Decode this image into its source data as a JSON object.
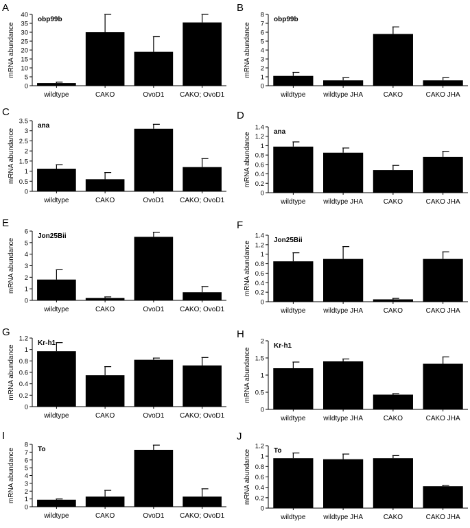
{
  "figure": {
    "ylabel": "mRNA abundance"
  },
  "chart_data": [
    {
      "panel": "A",
      "gene": "obp99b",
      "type": "bar",
      "categories": [
        "wildtype",
        "CAKO",
        "OvoD1",
        "CAKO; OvoD1"
      ],
      "values": [
        1.5,
        30,
        19,
        35.5
      ],
      "errors": [
        0.5,
        10,
        8.5,
        4.5
      ],
      "ylim": [
        0,
        40
      ],
      "yticks": [
        0,
        5,
        10,
        15,
        20,
        25,
        30,
        35,
        40
      ],
      "ytick_labels": [
        "0",
        "5",
        "10",
        "15",
        "20",
        "25",
        "30",
        "35",
        "40"
      ],
      "ylabel": "mRNA abundance",
      "color": "#000000"
    },
    {
      "panel": "B",
      "gene": "obp99b",
      "type": "bar",
      "categories": [
        "wildtype",
        "wildtype JHA",
        "CAKO",
        "CAKO JHA"
      ],
      "values": [
        1.1,
        0.6,
        5.8,
        0.6
      ],
      "errors": [
        0.4,
        0.3,
        0.8,
        0.3
      ],
      "ylim": [
        0,
        8
      ],
      "yticks": [
        0,
        1,
        2,
        3,
        4,
        5,
        6,
        7,
        8
      ],
      "ytick_labels": [
        "0",
        "1",
        "2",
        "3",
        "4",
        "5",
        "6",
        "7",
        "8"
      ],
      "ylabel": "mRNA abundance",
      "color": "#000000"
    },
    {
      "panel": "C",
      "gene": "ana",
      "type": "bar",
      "categories": [
        "wildtype",
        "CAKO",
        "OvoD1",
        "CAKO; OvoD1"
      ],
      "values": [
        1.12,
        0.6,
        3.1,
        1.2
      ],
      "errors": [
        0.2,
        0.33,
        0.22,
        0.42
      ],
      "ylim": [
        0,
        3.5
      ],
      "yticks": [
        0,
        0.5,
        1,
        1.5,
        2,
        2.5,
        3,
        3.5
      ],
      "ytick_labels": [
        "0",
        "0.5",
        "1",
        "1.5",
        "2",
        "2.5",
        "3",
        "3.5"
      ],
      "ylabel": "mRNA abundance",
      "color": "#000000"
    },
    {
      "panel": "D",
      "gene": "ana",
      "type": "bar",
      "categories": [
        "wildtype",
        "wildtype JHA",
        "CAKO",
        "CAKO JHA"
      ],
      "values": [
        0.98,
        0.85,
        0.48,
        0.76
      ],
      "errors": [
        0.1,
        0.1,
        0.1,
        0.12
      ],
      "ylim": [
        0,
        1.4
      ],
      "yticks": [
        0,
        0.2,
        0.4,
        0.6,
        0.8,
        1,
        1.2,
        1.4
      ],
      "ytick_labels": [
        "0",
        "0.2",
        "0.4",
        "0.6",
        "0.8",
        "1",
        "1.2",
        "1.4"
      ],
      "ylabel": "mRNA abundance",
      "color": "#000000"
    },
    {
      "panel": "E",
      "gene": "Jon25Bii",
      "type": "bar",
      "categories": [
        "wildtype",
        "CAKO",
        "OvoD1",
        "CAKO; OvoD1"
      ],
      "values": [
        1.8,
        0.2,
        5.5,
        0.7
      ],
      "errors": [
        0.85,
        0.1,
        0.4,
        0.5
      ],
      "ylim": [
        0,
        6
      ],
      "yticks": [
        0,
        1,
        2,
        3,
        4,
        5,
        6
      ],
      "ytick_labels": [
        "0",
        "1",
        "2",
        "3",
        "4",
        "5",
        "6"
      ],
      "ylabel": "mRNA abundance",
      "color": "#000000"
    },
    {
      "panel": "F",
      "gene": "Jon25Bii",
      "type": "bar",
      "categories": [
        "wildtype",
        "wildtype JHA",
        "CAKO",
        "CAKO JHA"
      ],
      "values": [
        0.85,
        0.9,
        0.05,
        0.9
      ],
      "errors": [
        0.18,
        0.26,
        0.02,
        0.15
      ],
      "ylim": [
        0,
        1.4
      ],
      "yticks": [
        0,
        0.2,
        0.4,
        0.6,
        0.8,
        1,
        1.2,
        1.4
      ],
      "ytick_labels": [
        "0",
        "0.2",
        "0.4",
        "0.6",
        "0.8",
        "1",
        "1.2",
        "1.4"
      ],
      "ylabel": "mRNA abundance",
      "color": "#000000"
    },
    {
      "panel": "G",
      "gene": "Kr-h1",
      "type": "bar",
      "categories": [
        "wildtype",
        "CAKO",
        "OvoD1",
        "CAKO; OvoD1"
      ],
      "values": [
        0.97,
        0.55,
        0.82,
        0.72
      ],
      "errors": [
        0.15,
        0.15,
        0.03,
        0.14
      ],
      "ylim": [
        0,
        1.2
      ],
      "yticks": [
        0,
        0.2,
        0.4,
        0.6,
        0.8,
        1,
        1.2
      ],
      "ytick_labels": [
        "0",
        "0.2",
        "0.4",
        "0.6",
        "0.8",
        "1",
        "1.2"
      ],
      "ylabel": "mRNA abundance",
      "color": "#000000"
    },
    {
      "panel": "H",
      "gene": "Kr-h1",
      "type": "bar",
      "categories": [
        "wildtype",
        "wildtype JHA",
        "CAKO",
        "CAKO JHA"
      ],
      "values": [
        1.2,
        1.4,
        0.43,
        1.33
      ],
      "errors": [
        0.18,
        0.07,
        0.03,
        0.2
      ],
      "ylim": [
        0,
        2
      ],
      "yticks": [
        0,
        0.5,
        1,
        1.5,
        2
      ],
      "ytick_labels": [
        "0",
        "0.5",
        "1",
        "1.5",
        "2"
      ],
      "ylabel": "mRNA abundance",
      "color": "#000000"
    },
    {
      "panel": "I",
      "gene": "To",
      "type": "bar",
      "categories": [
        "wildtype",
        "CAKO",
        "OvoD1",
        "CAKO; OvoD1"
      ],
      "values": [
        0.9,
        1.3,
        7.3,
        1.3
      ],
      "errors": [
        0.1,
        0.8,
        0.6,
        1.0
      ],
      "ylim": [
        0,
        8
      ],
      "yticks": [
        0,
        1,
        2,
        3,
        4,
        5,
        6,
        7,
        8
      ],
      "ytick_labels": [
        "0",
        "1",
        "2",
        "3",
        "4",
        "5",
        "6",
        "7",
        "8"
      ],
      "ylabel": "mRNA abundance",
      "color": "#000000"
    },
    {
      "panel": "J",
      "gene": "To",
      "type": "bar",
      "categories": [
        "wildtype",
        "wildtype JHA",
        "CAKO",
        "CAKO JHA"
      ],
      "values": [
        0.96,
        0.94,
        0.96,
        0.42
      ],
      "errors": [
        0.1,
        0.1,
        0.05,
        0.02
      ],
      "ylim": [
        0,
        1.2
      ],
      "yticks": [
        0,
        0.2,
        0.4,
        0.6,
        0.8,
        1,
        1.2
      ],
      "ytick_labels": [
        "0",
        "0.2",
        "0.4",
        "0.6",
        "0.8",
        "1",
        "1.2"
      ],
      "ylabel": "mRNA abundance",
      "color": "#000000"
    }
  ]
}
